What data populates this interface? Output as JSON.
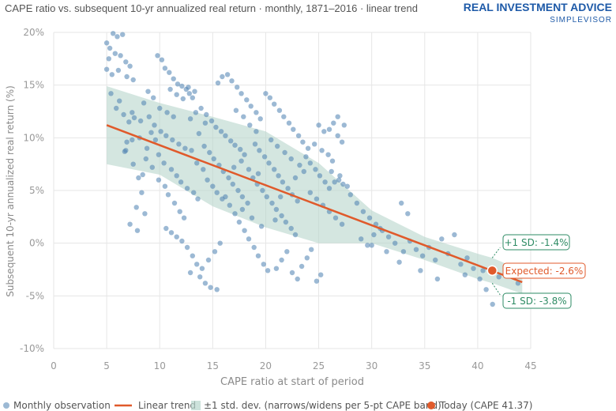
{
  "title": "CAPE ratio vs. subsequent 10-yr annualized real return · monthly, 1871–2016 · linear trend",
  "brand": {
    "name": "REAL INVESTMENT ADVICE",
    "sub": "SIMPLEVISOR"
  },
  "colors": {
    "dots": "#4a7fb0",
    "trend": "#e05a2b",
    "band": "#b7d6cc",
    "band_callout": "#2e8b64",
    "today": "#e05a2b"
  },
  "legend": {
    "monthly": "Monthly observation",
    "trend": "Linear trend",
    "band": "±1 std. dev. (narrows/widens per 5-pt CAPE band)",
    "today": "Today (CAPE 41.37)"
  },
  "callouts": {
    "plus": "+1 SD: -1.4%",
    "expected": "Expected: -2.6%",
    "minus": "-1 SD: -3.8%"
  },
  "chart_data": {
    "type": "scatter",
    "title": "CAPE ratio vs. subsequent 10-yr annualized real return · monthly, 1871–2016 · linear trend",
    "xlabel": "CAPE ratio at start of period",
    "ylabel": "Subsequent 10-yr annualized real return (%)",
    "xlim": [
      0,
      45
    ],
    "ylim": [
      -10,
      20
    ],
    "x_ticks": [
      0,
      5,
      10,
      15,
      20,
      25,
      30,
      35,
      40,
      45
    ],
    "y_ticks": [
      20,
      15,
      10,
      5,
      0,
      -5,
      -10
    ],
    "y_tick_labels": [
      "20%",
      "15%",
      "10%",
      "5%",
      "0%",
      "-5%",
      "-10%"
    ],
    "grid": true,
    "legend_position": "bottom",
    "trend": {
      "x": [
        5,
        44.2
      ],
      "y": [
        11.2,
        -3.7
      ]
    },
    "band": {
      "x": [
        5,
        10,
        15,
        20,
        25,
        30,
        35,
        40,
        41.37,
        44.2
      ],
      "upper": [
        14.9,
        13.3,
        12.0,
        10.6,
        7.6,
        3.1,
        0.6,
        -1.0,
        -1.4,
        -2.6
      ],
      "lower": [
        7.5,
        6.5,
        3.5,
        1.5,
        0.0,
        0.0,
        -1.6,
        -3.4,
        -3.8,
        -4.8
      ]
    },
    "today": {
      "x": 41.37,
      "expected": -2.6,
      "plus_1sd": -1.4,
      "minus_1sd": -3.8
    },
    "series": [
      {
        "name": "Monthly observation",
        "points": [
          [
            5.0,
            19.0
          ],
          [
            5.3,
            18.5
          ],
          [
            5.6,
            19.9
          ],
          [
            6.0,
            19.6
          ],
          [
            6.5,
            19.8
          ],
          [
            5.2,
            17.5
          ],
          [
            5.8,
            18.0
          ],
          [
            6.3,
            17.8
          ],
          [
            6.8,
            17.2
          ],
          [
            7.2,
            16.8
          ],
          [
            5.0,
            16.5
          ],
          [
            5.5,
            16.0
          ],
          [
            6.1,
            16.4
          ],
          [
            6.9,
            15.8
          ],
          [
            7.5,
            15.5
          ],
          [
            5.4,
            14.2
          ],
          [
            6.2,
            13.5
          ],
          [
            5.9,
            12.8
          ],
          [
            6.6,
            12.2
          ],
          [
            7.1,
            11.5
          ],
          [
            7.4,
            9.8
          ],
          [
            6.8,
            8.8
          ],
          [
            7.5,
            7.5
          ],
          [
            8.0,
            6.2
          ],
          [
            8.3,
            4.8
          ],
          [
            7.8,
            3.4
          ],
          [
            8.6,
            2.8
          ],
          [
            7.2,
            1.8
          ],
          [
            7.9,
            1.2
          ],
          [
            8.4,
            6.5
          ],
          [
            8.8,
            9.0
          ],
          [
            9.2,
            10.5
          ],
          [
            9.6,
            9.8
          ],
          [
            8.2,
            11.6
          ],
          [
            9.0,
            12.0
          ],
          [
            8.5,
            13.3
          ],
          [
            7.4,
            12.4
          ],
          [
            7.6,
            11.9
          ],
          [
            6.9,
            9.6
          ],
          [
            6.7,
            8.7
          ],
          [
            9.8,
            17.8
          ],
          [
            10.2,
            17.4
          ],
          [
            10.5,
            16.6
          ],
          [
            10.9,
            16.2
          ],
          [
            11.3,
            15.6
          ],
          [
            11.7,
            15.1
          ],
          [
            12.1,
            14.9
          ],
          [
            12.5,
            14.6
          ],
          [
            12.8,
            14.2
          ],
          [
            13.1,
            13.8
          ],
          [
            11.0,
            14.6
          ],
          [
            11.6,
            14.1
          ],
          [
            12.2,
            13.7
          ],
          [
            12.7,
            14.8
          ],
          [
            13.3,
            14.4
          ],
          [
            9.5,
            11.2
          ],
          [
            10.1,
            10.6
          ],
          [
            10.6,
            10.2
          ],
          [
            11.2,
            9.8
          ],
          [
            11.8,
            9.4
          ],
          [
            12.4,
            9.0
          ],
          [
            13.0,
            8.8
          ],
          [
            9.9,
            8.4
          ],
          [
            10.4,
            7.6
          ],
          [
            11.1,
            7.0
          ],
          [
            11.6,
            6.4
          ],
          [
            12.0,
            5.8
          ],
          [
            12.6,
            5.2
          ],
          [
            13.2,
            4.8
          ],
          [
            13.6,
            4.2
          ],
          [
            10.8,
            4.6
          ],
          [
            11.4,
            3.8
          ],
          [
            11.9,
            3.0
          ],
          [
            12.3,
            2.4
          ],
          [
            10.6,
            1.4
          ],
          [
            11.1,
            1.0
          ],
          [
            11.6,
            0.6
          ],
          [
            12.1,
            0.2
          ],
          [
            12.6,
            -0.4
          ],
          [
            13.1,
            -1.2
          ],
          [
            13.5,
            -2.0
          ],
          [
            12.9,
            -2.8
          ],
          [
            13.8,
            -3.2
          ],
          [
            14.3,
            -3.8
          ],
          [
            14.8,
            -4.2
          ],
          [
            15.4,
            -4.4
          ],
          [
            14.0,
            -2.4
          ],
          [
            14.6,
            -1.6
          ],
          [
            15.2,
            -0.8
          ],
          [
            15.7,
            0.0
          ],
          [
            13.9,
            12.8
          ],
          [
            14.4,
            12.2
          ],
          [
            14.9,
            11.6
          ],
          [
            15.3,
            11.0
          ],
          [
            15.8,
            10.6
          ],
          [
            16.2,
            10.2
          ],
          [
            16.7,
            9.7
          ],
          [
            17.1,
            9.3
          ],
          [
            17.6,
            8.9
          ],
          [
            18.0,
            8.4
          ],
          [
            14.2,
            9.2
          ],
          [
            14.7,
            8.6
          ],
          [
            15.1,
            8.0
          ],
          [
            15.6,
            7.4
          ],
          [
            16.0,
            6.8
          ],
          [
            16.5,
            6.2
          ],
          [
            16.9,
            5.6
          ],
          [
            17.4,
            5.0
          ],
          [
            17.8,
            4.4
          ],
          [
            18.3,
            3.8
          ],
          [
            15.5,
            15.2
          ],
          [
            15.9,
            15.8
          ],
          [
            16.4,
            16.0
          ],
          [
            16.8,
            15.4
          ],
          [
            17.3,
            14.8
          ],
          [
            17.7,
            14.2
          ],
          [
            18.2,
            13.6
          ],
          [
            18.6,
            13.0
          ],
          [
            19.1,
            12.4
          ],
          [
            19.5,
            11.8
          ],
          [
            20.0,
            14.2
          ],
          [
            20.4,
            13.8
          ],
          [
            20.8,
            13.2
          ],
          [
            21.3,
            12.6
          ],
          [
            21.7,
            12.0
          ],
          [
            22.2,
            11.4
          ],
          [
            22.6,
            10.8
          ],
          [
            23.1,
            10.2
          ],
          [
            23.5,
            9.6
          ],
          [
            24.0,
            9.0
          ],
          [
            19.0,
            9.4
          ],
          [
            19.4,
            8.8
          ],
          [
            19.9,
            8.2
          ],
          [
            20.3,
            7.6
          ],
          [
            20.8,
            7.0
          ],
          [
            21.2,
            6.4
          ],
          [
            21.6,
            5.8
          ],
          [
            22.1,
            5.2
          ],
          [
            22.5,
            4.6
          ],
          [
            23.0,
            4.0
          ],
          [
            18.8,
            6.2
          ],
          [
            19.2,
            5.6
          ],
          [
            19.7,
            5.0
          ],
          [
            20.1,
            4.4
          ],
          [
            20.6,
            3.8
          ],
          [
            21.0,
            3.2
          ],
          [
            21.5,
            2.6
          ],
          [
            21.9,
            2.0
          ],
          [
            22.4,
            1.4
          ],
          [
            22.8,
            0.8
          ],
          [
            16.2,
            4.4
          ],
          [
            16.6,
            3.6
          ],
          [
            17.1,
            2.8
          ],
          [
            17.5,
            2.0
          ],
          [
            18.0,
            1.2
          ],
          [
            18.4,
            0.4
          ],
          [
            18.9,
            -0.4
          ],
          [
            19.3,
            -1.2
          ],
          [
            19.8,
            -2.0
          ],
          [
            20.2,
            -2.6
          ],
          [
            21.0,
            -2.4
          ],
          [
            21.5,
            -1.6
          ],
          [
            22.0,
            -0.8
          ],
          [
            22.5,
            -2.8
          ],
          [
            23.0,
            -3.4
          ],
          [
            23.4,
            -2.2
          ],
          [
            23.9,
            -1.4
          ],
          [
            24.3,
            -0.6
          ],
          [
            24.8,
            -3.6
          ],
          [
            25.2,
            -3.0
          ],
          [
            23.8,
            8.2
          ],
          [
            24.2,
            7.6
          ],
          [
            24.7,
            7.0
          ],
          [
            25.1,
            6.4
          ],
          [
            25.6,
            5.8
          ],
          [
            26.0,
            5.2
          ],
          [
            26.5,
            5.8
          ],
          [
            26.9,
            6.0
          ],
          [
            27.3,
            5.6
          ],
          [
            27.7,
            5.4
          ],
          [
            25.0,
            11.2
          ],
          [
            25.5,
            10.6
          ],
          [
            26.0,
            10.8
          ],
          [
            26.4,
            11.4
          ],
          [
            26.8,
            10.2
          ],
          [
            27.2,
            9.6
          ],
          [
            24.6,
            9.4
          ],
          [
            25.3,
            8.8
          ],
          [
            25.9,
            8.4
          ],
          [
            26.3,
            7.8
          ],
          [
            26.8,
            12.0
          ],
          [
            27.4,
            11.2
          ],
          [
            26.2,
            6.8
          ],
          [
            27.0,
            6.4
          ],
          [
            24.2,
            4.8
          ],
          [
            24.8,
            4.2
          ],
          [
            25.4,
            3.6
          ],
          [
            26.0,
            3.0
          ],
          [
            26.6,
            2.4
          ],
          [
            27.2,
            1.8
          ],
          [
            28.0,
            4.6
          ],
          [
            28.6,
            3.8
          ],
          [
            29.2,
            3.0
          ],
          [
            29.8,
            2.4
          ],
          [
            30.4,
            1.8
          ],
          [
            31.0,
            1.2
          ],
          [
            31.6,
            0.6
          ],
          [
            32.2,
            0.0
          ],
          [
            32.8,
            3.8
          ],
          [
            33.4,
            2.8
          ],
          [
            29.0,
            0.4
          ],
          [
            29.6,
            -0.2
          ],
          [
            30.2,
            0.8
          ],
          [
            30.8,
            1.4
          ],
          [
            33.0,
            -0.8
          ],
          [
            33.6,
            0.2
          ],
          [
            34.2,
            -0.6
          ],
          [
            34.8,
            -1.2
          ],
          [
            35.4,
            -0.4
          ],
          [
            36.0,
            -1.6
          ],
          [
            36.6,
            0.4
          ],
          [
            37.2,
            -1.0
          ],
          [
            37.8,
            0.8
          ],
          [
            38.4,
            -2.0
          ],
          [
            39.0,
            -1.4
          ],
          [
            39.6,
            -2.4
          ],
          [
            40.2,
            -3.4
          ],
          [
            40.8,
            -4.4
          ],
          [
            41.4,
            -5.8
          ],
          [
            42.0,
            -3.2
          ],
          [
            42.6,
            -2.4
          ],
          [
            43.2,
            -3.0
          ],
          [
            43.8,
            -3.8
          ],
          [
            40.5,
            -2.6
          ],
          [
            38.8,
            -3.0
          ],
          [
            36.2,
            -3.4
          ],
          [
            34.6,
            -2.6
          ],
          [
            32.6,
            -1.8
          ],
          [
            31.4,
            -0.8
          ],
          [
            30.0,
            -0.2
          ],
          [
            9.4,
            13.8
          ],
          [
            8.9,
            14.4
          ],
          [
            10.0,
            12.8
          ],
          [
            10.7,
            12.4
          ],
          [
            11.3,
            12.0
          ],
          [
            8.1,
            10.0
          ],
          [
            8.7,
            8.0
          ],
          [
            9.3,
            7.2
          ],
          [
            9.9,
            6.0
          ],
          [
            10.5,
            5.4
          ],
          [
            14.5,
            6.0
          ],
          [
            15.0,
            5.4
          ],
          [
            15.4,
            4.8
          ],
          [
            15.9,
            4.2
          ],
          [
            13.5,
            7.6
          ],
          [
            14.1,
            7.0
          ],
          [
            13.7,
            10.4
          ],
          [
            14.3,
            11.4
          ],
          [
            12.9,
            11.8
          ],
          [
            13.4,
            12.4
          ],
          [
            17.2,
            12.6
          ],
          [
            17.9,
            12.0
          ],
          [
            18.5,
            11.2
          ],
          [
            19.1,
            10.6
          ],
          [
            17.0,
            7.2
          ],
          [
            17.7,
            7.8
          ],
          [
            18.4,
            7.0
          ],
          [
            19.3,
            6.6
          ],
          [
            20.5,
            9.8
          ],
          [
            21.1,
            9.2
          ],
          [
            21.8,
            8.6
          ],
          [
            22.4,
            8.0
          ],
          [
            23.2,
            7.4
          ],
          [
            23.6,
            6.8
          ],
          [
            22.8,
            6.2
          ],
          [
            21.4,
            4.4
          ],
          [
            20.9,
            2.2
          ],
          [
            19.6,
            1.6
          ],
          [
            18.7,
            2.4
          ],
          [
            17.8,
            3.2
          ]
        ]
      }
    ]
  }
}
